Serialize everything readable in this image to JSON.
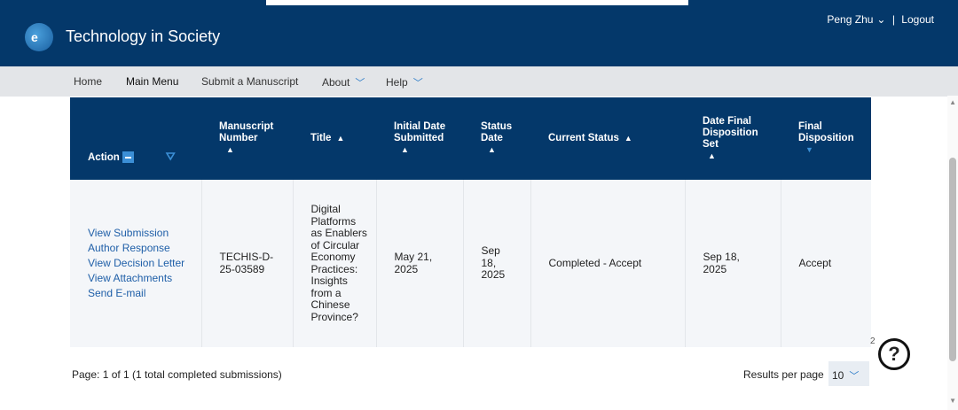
{
  "header": {
    "logo_text": "e",
    "title": "Technology in Society",
    "user": "Peng Zhu",
    "separator": "|",
    "logout": "Logout"
  },
  "nav": {
    "items": [
      {
        "label": "Home"
      },
      {
        "label": "Main Menu"
      },
      {
        "label": "Submit a Manuscript"
      },
      {
        "label": "About"
      },
      {
        "label": "Help"
      }
    ]
  },
  "table": {
    "headers": [
      "Action",
      "Manuscript Number",
      "Title",
      "Initial Date Submitted",
      "Status Date",
      "Current Status",
      "Date Final Disposition Set",
      "Final Disposition"
    ],
    "row": {
      "actions": [
        "View Submission",
        "Author Response",
        "View Decision Letter",
        "View Attachments",
        "Send E-mail"
      ],
      "manuscript_number": "TECHIS-D-25-03589",
      "title": "Digital Platforms as Enablers of Circular Economy Practices: Insights from a Chinese Province?",
      "initial_date": "May 21, 2025",
      "status_date": "Sep 18, 2025",
      "current_status": "Completed - Accept",
      "date_final": "Sep 18, 2025",
      "final_disposition": "Accept"
    }
  },
  "footer": {
    "page_info": "Page: 1 of 1 (1 total completed submissions)",
    "results_label": "Results per page",
    "results_value": "10"
  },
  "help": {
    "badge": "2",
    "icon": "?"
  }
}
